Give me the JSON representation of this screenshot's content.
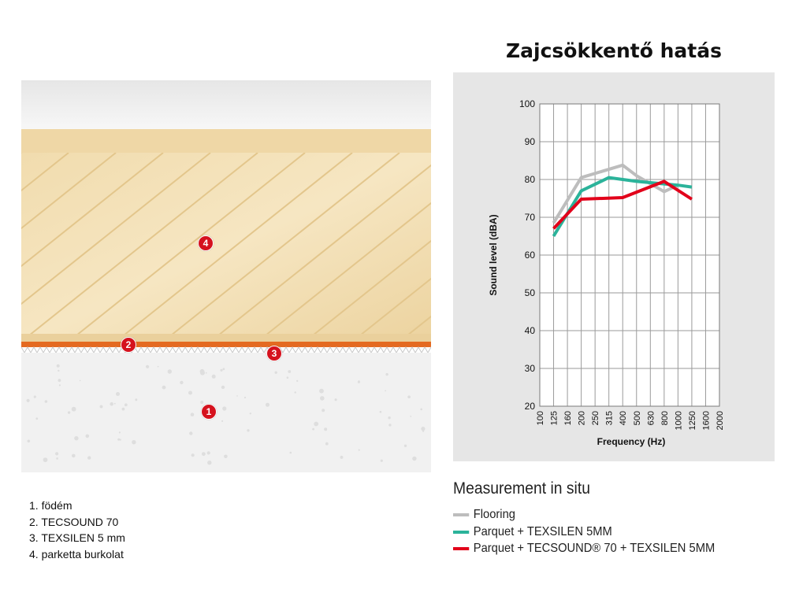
{
  "layers": {
    "items": [
      {
        "number": "1",
        "label": "1. födém"
      },
      {
        "number": "2",
        "label": "2. TECSOUND 70"
      },
      {
        "number": "3",
        "label": "3. TEXSILEN 5 mm"
      },
      {
        "number": "4",
        "label": "4. parketta burkolat"
      }
    ],
    "badge_color": "#d5121e"
  },
  "chart_data": {
    "type": "line",
    "title": "Zajcsökkentő hatás",
    "xlabel": "Frequency (Hz)",
    "ylabel": "Sound level (dBA)",
    "categories": [
      "100",
      "125",
      "160",
      "200",
      "250",
      "315",
      "400",
      "500",
      "630",
      "800",
      "1000",
      "1250",
      "1600",
      "2000"
    ],
    "yticks": [
      20,
      30,
      40,
      50,
      60,
      70,
      80,
      90,
      100
    ],
    "ylim": [
      20,
      100
    ],
    "grid": true,
    "series": [
      {
        "name": "Flooring",
        "color": "#bdbdbd",
        "points": [
          [
            1,
            68.5
          ],
          [
            3,
            80.5
          ],
          [
            6,
            83.8
          ],
          [
            7,
            81
          ],
          [
            9,
            76.8
          ],
          [
            10,
            78.5
          ]
        ]
      },
      {
        "name": "Parquet + TEXSILEN 5MM",
        "color": "#2bb39a",
        "points": [
          [
            1,
            65
          ],
          [
            3,
            77
          ],
          [
            5,
            80.5
          ],
          [
            7,
            79.5
          ],
          [
            10,
            78.5
          ],
          [
            11,
            78
          ]
        ]
      },
      {
        "name": "Parquet + TECSOUND® 70 + TEXSILEN 5MM",
        "color": "#e2001a",
        "points": [
          [
            1,
            67
          ],
          [
            3,
            74.8
          ],
          [
            6,
            75.2
          ],
          [
            9,
            79.5
          ],
          [
            11,
            74.8
          ]
        ]
      }
    ],
    "legend_title": "Measurement in situ",
    "legend_placement": "bottom"
  }
}
